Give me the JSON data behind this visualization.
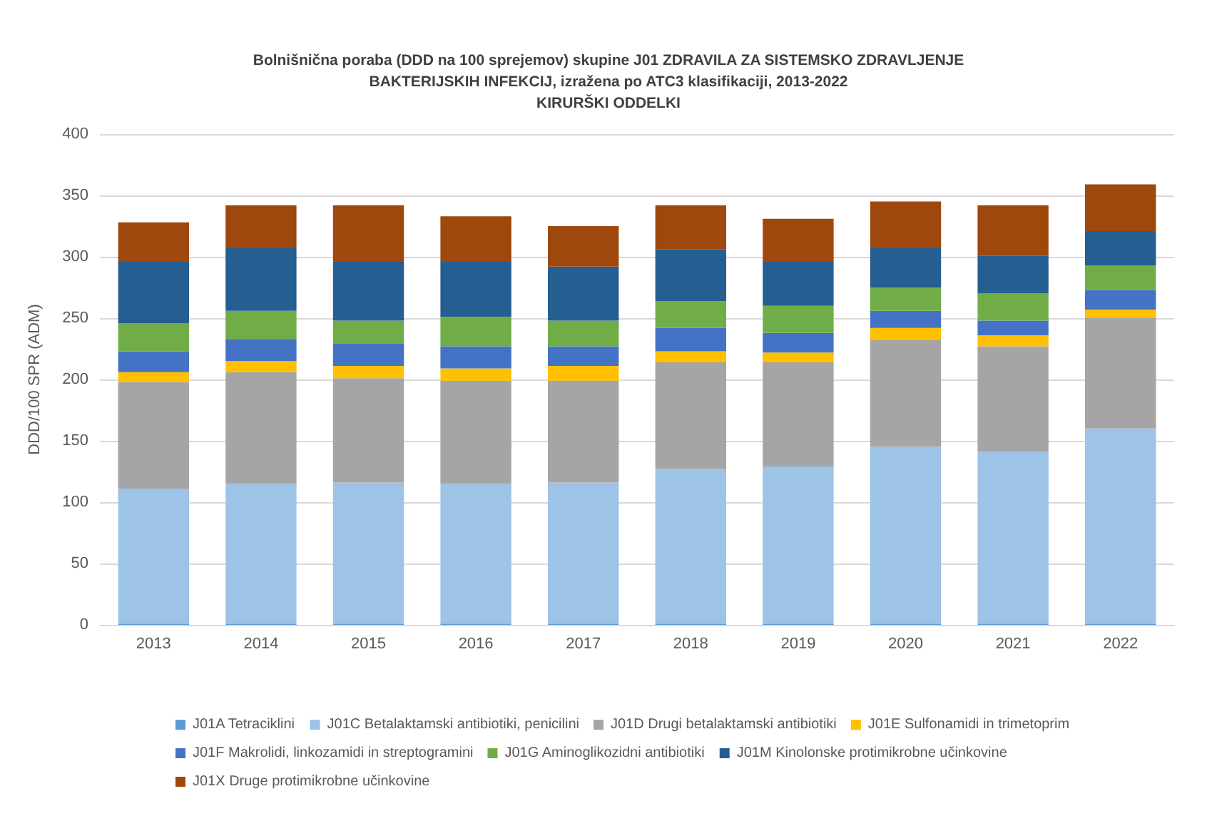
{
  "chart_data": {
    "type": "bar",
    "stacked": true,
    "title": "Bolnišnična poraba (DDD na 100 sprejemov) skupine J01 ZDRAVILA ZA SISTEMSKO ZDRAVLJENJE\nBAKTERIJSKIH INFEKCIJ, izražena po ATC3 klasifikaciji, 2013-2022\nKIRURŠKI ODDELKI",
    "ylabel": "DDD/100 SPR (ADM)",
    "categories": [
      "2013",
      "2014",
      "2015",
      "2016",
      "2017",
      "2018",
      "2019",
      "2020",
      "2021",
      "2022"
    ],
    "series": [
      {
        "name": "J01A Tetraciklini",
        "color": "#5b9bd5",
        "values": [
          1,
          1,
          1,
          1,
          1,
          1,
          1,
          1,
          1,
          1
        ]
      },
      {
        "name": "J01C Betalaktamski antibiotiki, penicilini",
        "color": "#9dc3e6",
        "values": [
          110,
          114,
          115,
          114,
          115,
          126,
          128,
          144,
          140,
          159
        ]
      },
      {
        "name": "J01D Drugi betalaktamski antibiotiki",
        "color": "#a5a5a5",
        "values": [
          87,
          91,
          85,
          84,
          83,
          87,
          85,
          87,
          86,
          90
        ]
      },
      {
        "name": "J01E Sulfonamidi in trimetoprim",
        "color": "#ffc000",
        "values": [
          8,
          9,
          10,
          10,
          12,
          9,
          8,
          10,
          9,
          7
        ]
      },
      {
        "name": "J01F Makrolidi, linkozamidi in streptogramini",
        "color": "#4472c4",
        "values": [
          17,
          18,
          18,
          18,
          16,
          19,
          16,
          14,
          12,
          16
        ]
      },
      {
        "name": "J01G Aminoglikozidni antibiotiki",
        "color": "#70ad47",
        "values": [
          23,
          23,
          19,
          24,
          21,
          22,
          22,
          19,
          22,
          20
        ]
      },
      {
        "name": "J01M Kinolonske protimikrobne učinkovine",
        "color": "#255e91",
        "values": [
          50,
          51,
          48,
          45,
          44,
          42,
          36,
          32,
          31,
          28
        ]
      },
      {
        "name": "J01X Druge protimikrobne učinkovine",
        "color": "#9e480e",
        "values": [
          32,
          35,
          46,
          37,
          33,
          36,
          35,
          38,
          41,
          38
        ]
      }
    ],
    "ylim": [
      0,
      400
    ],
    "yticks": [
      0,
      50,
      100,
      150,
      200,
      250,
      300,
      350,
      400
    ],
    "grid": "y",
    "legend": "bottom"
  }
}
